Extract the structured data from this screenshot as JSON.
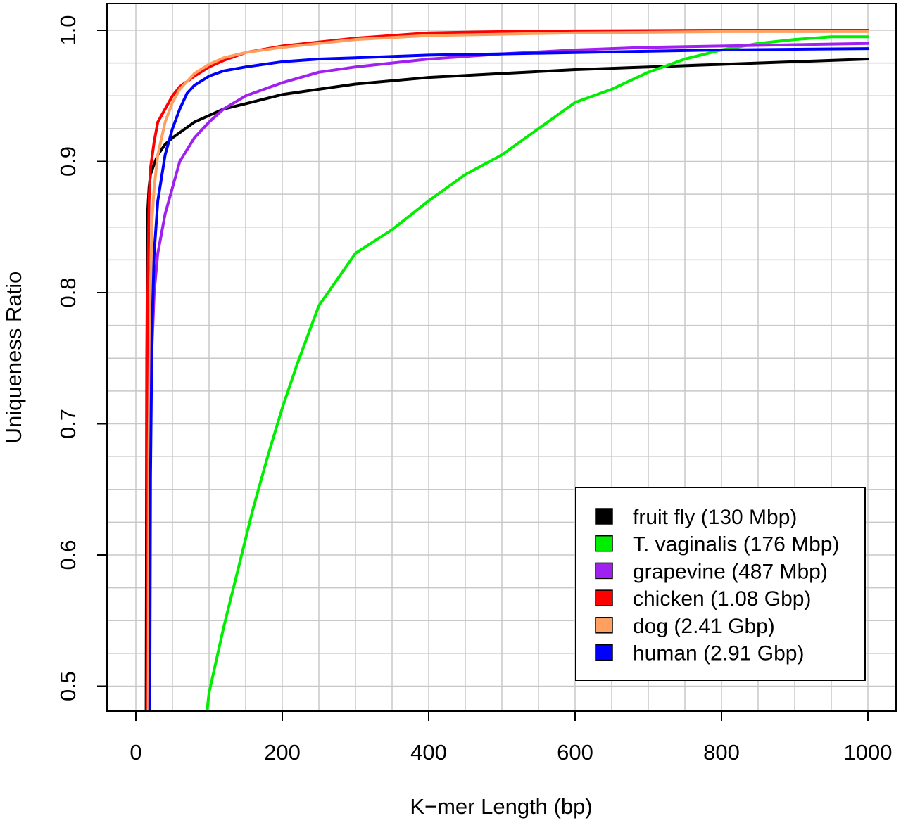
{
  "chart_data": {
    "type": "line",
    "title": "",
    "xlabel": "K−mer Length (bp)",
    "ylabel": "Uniqueness Ratio",
    "xlim": [
      0,
      1000
    ],
    "ylim": [
      0.48,
      1.0
    ],
    "x_ticks": [
      0,
      200,
      400,
      600,
      800,
      1000
    ],
    "x_tick_labels": [
      "0",
      "200",
      "400",
      "600",
      "800",
      "1000"
    ],
    "y_ticks": [
      0.5,
      0.6,
      0.7,
      0.8,
      0.9,
      1.0
    ],
    "y_tick_labels": [
      "0.5",
      "0.6",
      "0.7",
      "0.8",
      "0.9",
      "1.0"
    ],
    "grid": true,
    "legend_position": "bottom-right",
    "series": [
      {
        "name": "fruit fly (130 Mbp)",
        "color": "#000000",
        "points": [
          [
            14,
            0.48
          ],
          [
            15,
            0.75
          ],
          [
            16,
            0.86
          ],
          [
            18,
            0.88
          ],
          [
            20,
            0.89
          ],
          [
            25,
            0.898
          ],
          [
            30,
            0.905
          ],
          [
            40,
            0.913
          ],
          [
            50,
            0.918
          ],
          [
            60,
            0.922
          ],
          [
            80,
            0.93
          ],
          [
            100,
            0.935
          ],
          [
            120,
            0.94
          ],
          [
            150,
            0.944
          ],
          [
            200,
            0.951
          ],
          [
            250,
            0.955
          ],
          [
            300,
            0.959
          ],
          [
            400,
            0.964
          ],
          [
            500,
            0.967
          ],
          [
            600,
            0.97
          ],
          [
            700,
            0.972
          ],
          [
            800,
            0.974
          ],
          [
            900,
            0.976
          ],
          [
            1000,
            0.978
          ]
        ]
      },
      {
        "name": "T. vaginalis (176 Mbp)",
        "color": "#00ee00",
        "points": [
          [
            97,
            0.48
          ],
          [
            100,
            0.495
          ],
          [
            120,
            0.545
          ],
          [
            140,
            0.59
          ],
          [
            160,
            0.635
          ],
          [
            180,
            0.675
          ],
          [
            200,
            0.712
          ],
          [
            220,
            0.745
          ],
          [
            250,
            0.79
          ],
          [
            300,
            0.83
          ],
          [
            350,
            0.848
          ],
          [
            400,
            0.87
          ],
          [
            450,
            0.89
          ],
          [
            500,
            0.905
          ],
          [
            550,
            0.925
          ],
          [
            600,
            0.945
          ],
          [
            650,
            0.955
          ],
          [
            700,
            0.968
          ],
          [
            750,
            0.978
          ],
          [
            800,
            0.985
          ],
          [
            850,
            0.99
          ],
          [
            900,
            0.993
          ],
          [
            950,
            0.995
          ],
          [
            1000,
            0.995
          ]
        ]
      },
      {
        "name": "grapevine (487 Mbp)",
        "color": "#a020f0",
        "points": [
          [
            17,
            0.48
          ],
          [
            18,
            0.62
          ],
          [
            20,
            0.73
          ],
          [
            25,
            0.8
          ],
          [
            30,
            0.83
          ],
          [
            40,
            0.86
          ],
          [
            50,
            0.88
          ],
          [
            60,
            0.9
          ],
          [
            80,
            0.918
          ],
          [
            100,
            0.93
          ],
          [
            120,
            0.94
          ],
          [
            150,
            0.95
          ],
          [
            200,
            0.96
          ],
          [
            250,
            0.968
          ],
          [
            300,
            0.972
          ],
          [
            400,
            0.978
          ],
          [
            500,
            0.982
          ],
          [
            600,
            0.985
          ],
          [
            700,
            0.987
          ],
          [
            800,
            0.988
          ],
          [
            900,
            0.989
          ],
          [
            1000,
            0.99
          ]
        ]
      },
      {
        "name": "chicken (1.08 Gbp)",
        "color": "#ff0000",
        "points": [
          [
            15,
            0.48
          ],
          [
            16,
            0.78
          ],
          [
            18,
            0.87
          ],
          [
            20,
            0.895
          ],
          [
            25,
            0.915
          ],
          [
            30,
            0.93
          ],
          [
            40,
            0.94
          ],
          [
            50,
            0.95
          ],
          [
            60,
            0.957
          ],
          [
            80,
            0.965
          ],
          [
            100,
            0.972
          ],
          [
            120,
            0.977
          ],
          [
            150,
            0.983
          ],
          [
            200,
            0.988
          ],
          [
            250,
            0.991
          ],
          [
            300,
            0.994
          ],
          [
            400,
            0.998
          ],
          [
            500,
            0.999
          ],
          [
            600,
            0.9995
          ],
          [
            800,
            1.0
          ],
          [
            1000,
            1.0
          ]
        ]
      },
      {
        "name": "dog (2.41 Gbp)",
        "color": "#ffa060",
        "points": [
          [
            17,
            0.48
          ],
          [
            18,
            0.68
          ],
          [
            20,
            0.8
          ],
          [
            22,
            0.855
          ],
          [
            25,
            0.88
          ],
          [
            30,
            0.905
          ],
          [
            40,
            0.93
          ],
          [
            50,
            0.945
          ],
          [
            60,
            0.955
          ],
          [
            80,
            0.967
          ],
          [
            100,
            0.974
          ],
          [
            120,
            0.979
          ],
          [
            150,
            0.983
          ],
          [
            200,
            0.987
          ],
          [
            250,
            0.99
          ],
          [
            300,
            0.993
          ],
          [
            400,
            0.996
          ],
          [
            500,
            0.997
          ],
          [
            600,
            0.998
          ],
          [
            800,
            0.999
          ],
          [
            1000,
            0.999
          ]
        ]
      },
      {
        "name": "human (2.91 Gbp)",
        "color": "#0000ff",
        "points": [
          [
            19,
            0.48
          ],
          [
            20,
            0.66
          ],
          [
            22,
            0.77
          ],
          [
            25,
            0.83
          ],
          [
            30,
            0.87
          ],
          [
            40,
            0.905
          ],
          [
            50,
            0.925
          ],
          [
            60,
            0.94
          ],
          [
            70,
            0.952
          ],
          [
            80,
            0.958
          ],
          [
            100,
            0.965
          ],
          [
            120,
            0.969
          ],
          [
            150,
            0.972
          ],
          [
            200,
            0.976
          ],
          [
            250,
            0.978
          ],
          [
            300,
            0.979
          ],
          [
            400,
            0.981
          ],
          [
            500,
            0.982
          ],
          [
            600,
            0.983
          ],
          [
            800,
            0.985
          ],
          [
            1000,
            0.986
          ]
        ]
      }
    ]
  }
}
